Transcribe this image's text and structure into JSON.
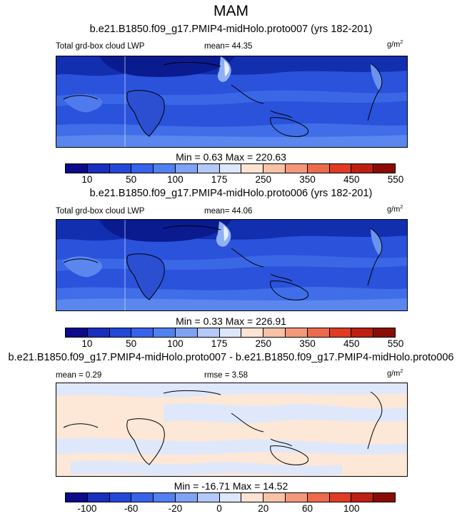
{
  "chart_data": {
    "type": "heatmap",
    "title": "MAM",
    "panels": [
      {
        "case": "b.e21.B1850.f09_g17.PMIP4-midHolo.proto007 (yrs 182-201)",
        "variable": "Total grd-box cloud LWP",
        "mean_text": "mean=  44.35",
        "units": "g/m",
        "units_exp": "2",
        "minmax": "Min =   0.63 Max = 220.63",
        "colorbar_ticks": [
          "10",
          "50",
          "100",
          "175",
          "250",
          "350",
          "450",
          "550"
        ],
        "mean": 44.35,
        "min": 0.63,
        "max": 220.63
      },
      {
        "case": "b.e21.B1850.f09_g17.PMIP4-midHolo.proto006 (yrs 182-201)",
        "variable": "Total grd-box cloud LWP",
        "mean_text": "mean=  44.06",
        "units": "g/m",
        "units_exp": "2",
        "minmax": "Min =   0.33 Max = 226.91",
        "colorbar_ticks": [
          "10",
          "50",
          "100",
          "175",
          "250",
          "350",
          "450",
          "550"
        ],
        "mean": 44.06,
        "min": 0.33,
        "max": 226.91
      },
      {
        "case": "b.e21.B1850.f09_g17.PMIP4-midHolo.proto007 - b.e21.B1850.f09_g17.PMIP4-midHolo.proto006",
        "mean_text": "mean =   0.29",
        "rmse_text": "rmse =   3.58",
        "units": "g/m",
        "units_exp": "2",
        "minmax": "Min = -16.71 Max =  14.52",
        "colorbar_ticks": [
          "-100",
          "-60",
          "-20",
          "0",
          "20",
          "60",
          "100"
        ],
        "mean": 0.29,
        "rmse": 3.58,
        "min": -16.71,
        "max": 14.52
      }
    ],
    "colorbar_colors": [
      "#0b0b8c",
      "#1a2fbd",
      "#2348d8",
      "#3763ea",
      "#5280f0",
      "#7fa2f2",
      "#b4c9f6",
      "#dde7fb",
      "#fde3d2",
      "#f8c2a6",
      "#f3987a",
      "#eb6b4c",
      "#e03c23",
      "#bd1f12",
      "#8a0d05"
    ]
  }
}
